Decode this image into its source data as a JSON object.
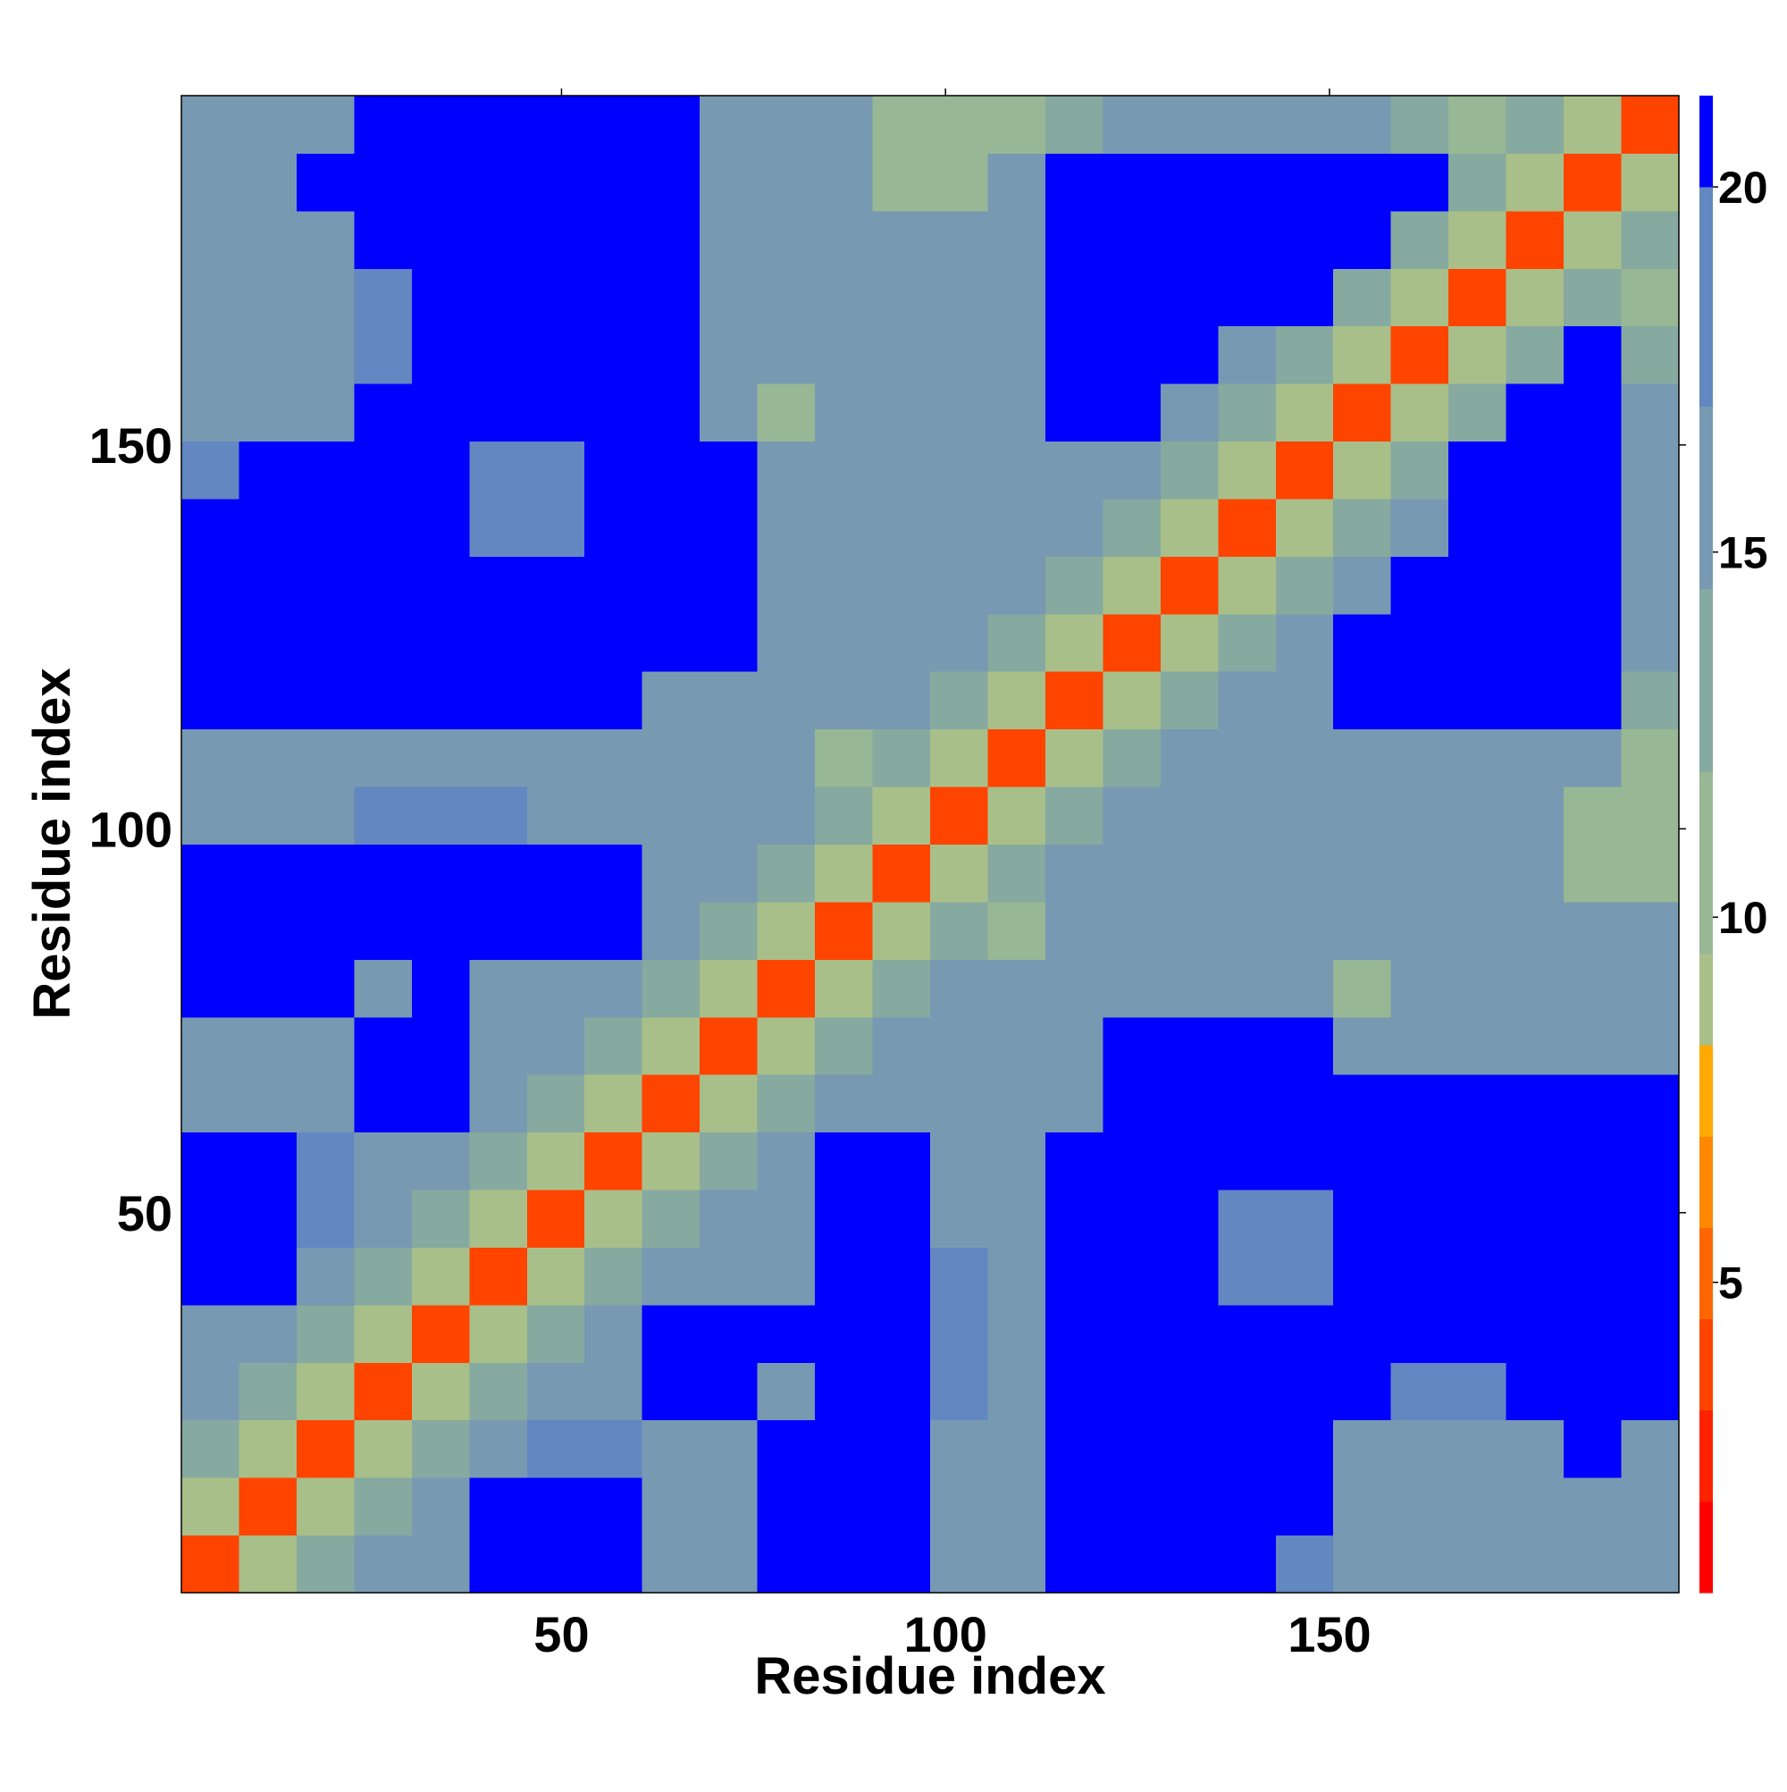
{
  "chart_data": {
    "type": "heatmap",
    "x_label": "Residue index",
    "y_label": "Residue index",
    "x": [
      4.25,
      11.75,
      19.25,
      26.75,
      34.25,
      41.75,
      49.25,
      56.75,
      64.25,
      71.75,
      79.25,
      86.75,
      94.25,
      101.75,
      109.25,
      116.75,
      124.25,
      131.75,
      139.25,
      146.75,
      154.25,
      161.75,
      169.25,
      176.75,
      184.25,
      191.75
    ],
    "y": [
      4.25,
      11.75,
      19.25,
      26.75,
      34.25,
      41.75,
      49.25,
      56.75,
      64.25,
      71.75,
      79.25,
      86.75,
      94.25,
      101.75,
      109.25,
      116.75,
      124.25,
      131.75,
      139.25,
      146.75,
      154.25,
      161.75,
      169.25,
      176.75,
      184.25,
      191.75
    ],
    "z": [
      [
        4,
        9,
        13,
        16,
        16,
        21,
        21,
        21,
        16,
        17,
        21,
        21,
        21,
        16,
        15,
        21,
        21,
        21,
        21,
        18,
        17,
        15,
        15,
        15,
        17,
        15
      ],
      [
        9,
        4,
        9,
        13,
        16,
        21,
        21,
        21,
        16,
        16,
        21,
        21,
        21,
        16,
        15,
        21,
        21,
        21,
        21,
        21,
        17,
        15,
        15,
        15,
        17,
        15
      ],
      [
        13,
        9,
        4,
        9,
        13,
        16,
        18,
        18,
        16,
        16,
        21,
        21,
        21,
        16,
        15,
        21,
        21,
        21,
        21,
        21,
        17,
        15,
        15,
        15,
        21,
        15
      ],
      [
        16,
        13,
        9,
        4,
        9,
        13,
        16,
        16,
        21,
        21,
        17,
        21,
        21,
        18,
        15,
        21,
        21,
        21,
        21,
        21,
        21,
        18,
        18,
        21,
        21,
        21
      ],
      [
        16,
        16,
        13,
        9,
        4,
        9,
        13,
        16,
        21,
        21,
        21,
        21,
        21,
        18,
        15,
        21,
        21,
        21,
        21,
        21,
        21,
        21,
        21,
        21,
        21,
        21
      ],
      [
        21,
        21,
        16,
        13,
        9,
        4,
        9,
        13,
        17,
        17,
        16,
        21,
        21,
        18,
        15,
        21,
        21,
        21,
        18,
        18,
        21,
        21,
        21,
        21,
        21,
        21
      ],
      [
        21,
        21,
        18,
        16,
        13,
        9,
        4,
        9,
        13,
        16,
        16,
        21,
        21,
        16,
        15,
        21,
        21,
        21,
        18,
        18,
        21,
        21,
        21,
        21,
        21,
        21
      ],
      [
        21,
        21,
        18,
        16,
        16,
        13,
        9,
        4,
        9,
        13,
        16,
        21,
        21,
        16,
        15,
        21,
        21,
        21,
        21,
        21,
        21,
        21,
        21,
        21,
        21,
        21
      ],
      [
        16,
        16,
        16,
        21,
        21,
        17,
        13,
        9,
        4,
        9,
        13,
        17,
        17,
        16,
        15,
        17,
        21,
        21,
        21,
        21,
        21,
        21,
        21,
        21,
        21,
        21
      ],
      [
        17,
        16,
        16,
        21,
        21,
        17,
        16,
        13,
        9,
        4,
        9,
        13,
        17,
        16,
        15,
        17,
        21,
        21,
        21,
        21,
        15,
        15,
        15,
        15,
        16,
        16
      ],
      [
        21,
        21,
        21,
        17,
        21,
        16,
        16,
        16,
        13,
        9,
        4,
        9,
        13,
        16,
        15,
        17,
        17,
        17,
        17,
        17,
        11,
        15,
        15,
        15,
        16,
        16
      ],
      [
        21,
        21,
        21,
        21,
        21,
        21,
        21,
        21,
        17,
        13,
        9,
        4,
        9,
        13,
        12,
        17,
        17,
        17,
        17,
        15,
        15,
        15,
        15,
        15,
        16,
        16
      ],
      [
        21,
        21,
        21,
        21,
        21,
        21,
        21,
        21,
        17,
        17,
        13,
        9,
        4,
        9,
        13,
        17,
        17,
        17,
        17,
        15,
        15,
        15,
        15,
        15,
        12,
        12
      ],
      [
        16,
        16,
        16,
        18,
        18,
        18,
        16,
        16,
        16,
        16,
        16,
        13,
        9,
        4,
        9,
        13,
        15,
        15,
        15,
        15,
        15,
        15,
        15,
        15,
        12,
        10
      ],
      [
        15,
        15,
        15,
        15,
        15,
        15,
        15,
        15,
        15,
        15,
        15,
        12,
        13,
        9,
        4,
        9,
        13,
        16,
        16,
        16,
        15,
        15,
        15,
        15,
        15,
        10
      ],
      [
        21,
        21,
        21,
        21,
        21,
        21,
        21,
        21,
        17,
        17,
        17,
        17,
        17,
        13,
        9,
        4,
        9,
        13,
        16,
        16,
        21,
        21,
        21,
        21,
        21,
        14
      ],
      [
        21,
        21,
        21,
        21,
        21,
        21,
        21,
        21,
        21,
        21,
        17,
        17,
        17,
        15,
        13,
        9,
        4,
        9,
        13,
        16,
        21,
        21,
        21,
        21,
        21,
        17
      ],
      [
        21,
        21,
        21,
        21,
        21,
        21,
        21,
        21,
        21,
        21,
        17,
        17,
        17,
        15,
        16,
        13,
        9,
        4,
        9,
        13,
        16,
        21,
        21,
        21,
        21,
        17
      ],
      [
        21,
        21,
        21,
        21,
        21,
        18,
        18,
        21,
        21,
        21,
        17,
        17,
        17,
        15,
        16,
        16,
        13,
        9,
        4,
        9,
        13,
        16,
        21,
        21,
        21,
        17
      ],
      [
        18,
        21,
        21,
        21,
        21,
        18,
        18,
        21,
        21,
        21,
        17,
        15,
        15,
        15,
        16,
        16,
        16,
        13,
        9,
        4,
        9,
        13,
        21,
        21,
        21,
        17
      ],
      [
        17,
        17,
        17,
        21,
        21,
        21,
        21,
        21,
        21,
        15,
        11,
        15,
        15,
        15,
        15,
        21,
        21,
        16,
        13,
        9,
        4,
        9,
        13,
        21,
        21,
        16
      ],
      [
        15,
        15,
        15,
        18,
        21,
        21,
        21,
        21,
        21,
        15,
        15,
        15,
        15,
        15,
        15,
        21,
        21,
        21,
        16,
        13,
        9,
        4,
        9,
        13,
        21,
        14
      ],
      [
        15,
        15,
        15,
        18,
        21,
        21,
        21,
        21,
        21,
        15,
        15,
        15,
        15,
        15,
        15,
        21,
        21,
        21,
        21,
        21,
        13,
        9,
        4,
        9,
        13,
        10
      ],
      [
        15,
        15,
        15,
        21,
        21,
        21,
        21,
        21,
        21,
        15,
        15,
        15,
        15,
        15,
        15,
        21,
        21,
        21,
        21,
        21,
        21,
        13,
        9,
        4,
        9,
        13
      ],
      [
        17,
        17,
        21,
        21,
        21,
        21,
        21,
        21,
        21,
        16,
        16,
        16,
        12,
        12,
        15,
        21,
        21,
        21,
        21,
        21,
        21,
        21,
        13,
        9,
        4,
        9
      ],
      [
        15,
        15,
        15,
        21,
        21,
        21,
        21,
        21,
        21,
        16,
        16,
        16,
        12,
        10,
        10,
        14,
        17,
        17,
        17,
        17,
        16,
        14,
        10,
        13,
        9,
        4
      ]
    ],
    "xlim": [
      0.5,
      195.5
    ],
    "ylim": [
      0.5,
      195.5
    ],
    "xticks": [
      50,
      100,
      150
    ],
    "yticks": [
      50,
      100,
      150
    ],
    "levels": [
      0.75,
      2,
      3.25,
      4.5,
      5.75,
      7,
      8.25,
      9.5,
      12,
      14.5,
      17,
      20,
      21.25
    ],
    "colors": [
      "#ff0000",
      "#ff2200",
      "#ff4400",
      "#ff6600",
      "#ff8800",
      "#ffaa00",
      "#a9bf8a",
      "#98b795",
      "#86a9a0",
      "#7899b2",
      "#6387c0",
      "#0000ff"
    ],
    "colorbar_ticks": [
      5,
      10,
      15,
      20
    ]
  }
}
